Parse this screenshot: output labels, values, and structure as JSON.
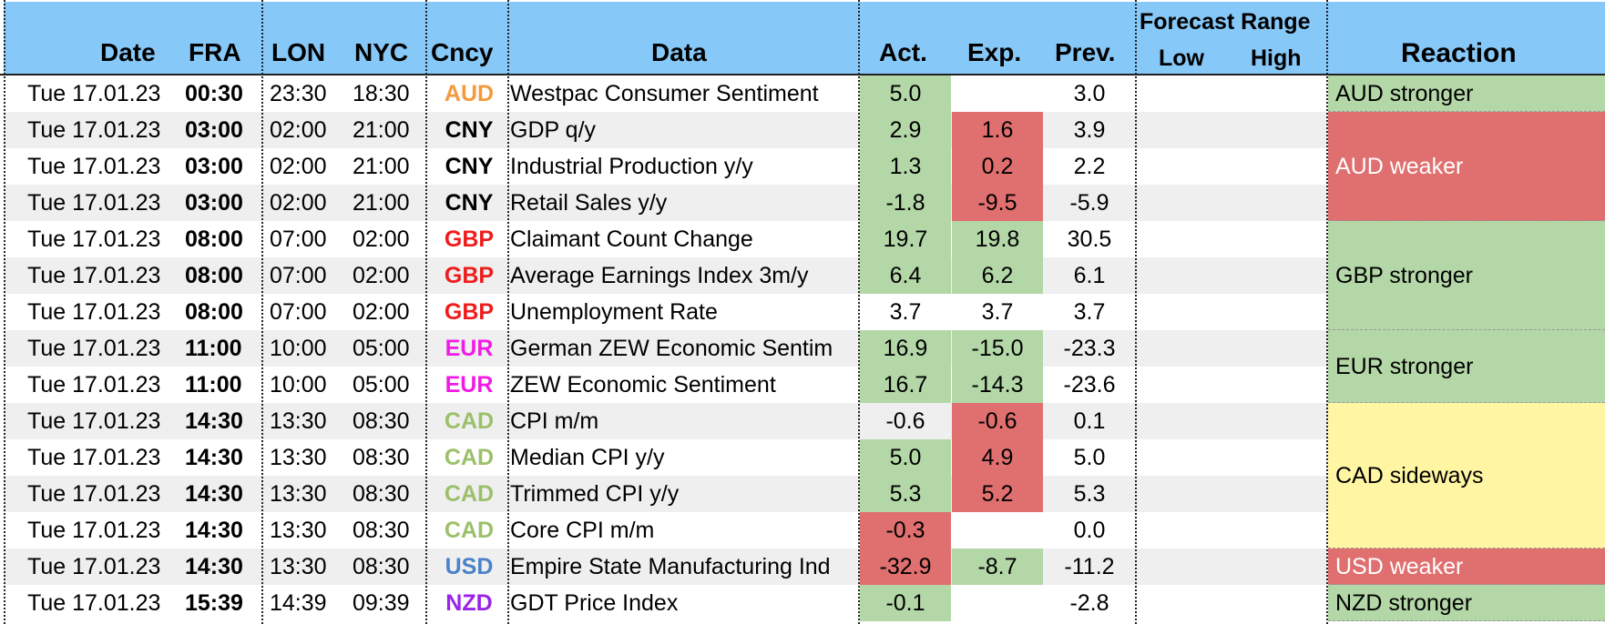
{
  "header": {
    "date": "Date",
    "fra": "FRA",
    "lon": "LON",
    "nyc": "NYC",
    "cncy": "Cncy",
    "data": "Data",
    "act": "Act.",
    "exp": "Exp.",
    "prev": "Prev.",
    "forecast_range": "Forecast Range",
    "low": "Low",
    "high": "High",
    "reaction": "Reaction"
  },
  "colors": {
    "AUD": "#f59a3c",
    "CNY": "#000000",
    "GBP": "#ef1c1c",
    "EUR": "#f01ce6",
    "CAD": "#9cc06a",
    "USD": "#4c82c8",
    "NZD": "#9b22e8",
    "positive": "#b4d7a7",
    "negative": "#e06f6f",
    "neutral": "#fff5a3",
    "header": "#86c8f8"
  },
  "rows": [
    {
      "date": "Tue 17.01.23",
      "fra": "00:30",
      "lon": "23:30",
      "nyc": "18:30",
      "cncy": "AUD",
      "data": "Westpac Consumer Sentiment",
      "act": "5.0",
      "exp": "",
      "prev": "3.0"
    },
    {
      "date": "Tue 17.01.23",
      "fra": "03:00",
      "lon": "02:00",
      "nyc": "21:00",
      "cncy": "CNY",
      "data": "GDP q/y",
      "act": "2.9",
      "exp": "1.6",
      "prev": "3.9"
    },
    {
      "date": "Tue 17.01.23",
      "fra": "03:00",
      "lon": "02:00",
      "nyc": "21:00",
      "cncy": "CNY",
      "data": "Industrial Production y/y",
      "act": "1.3",
      "exp": "0.2",
      "prev": "2.2"
    },
    {
      "date": "Tue 17.01.23",
      "fra": "03:00",
      "lon": "02:00",
      "nyc": "21:00",
      "cncy": "CNY",
      "data": "Retail Sales y/y",
      "act": "-1.8",
      "exp": "-9.5",
      "prev": "-5.9"
    },
    {
      "date": "Tue 17.01.23",
      "fra": "08:00",
      "lon": "07:00",
      "nyc": "02:00",
      "cncy": "GBP",
      "data": "Claimant Count Change",
      "act": "19.7",
      "exp": "19.8",
      "prev": "30.5"
    },
    {
      "date": "Tue 17.01.23",
      "fra": "08:00",
      "lon": "07:00",
      "nyc": "02:00",
      "cncy": "GBP",
      "data": "Average Earnings Index 3m/y",
      "act": "6.4",
      "exp": "6.2",
      "prev": "6.1"
    },
    {
      "date": "Tue 17.01.23",
      "fra": "08:00",
      "lon": "07:00",
      "nyc": "02:00",
      "cncy": "GBP",
      "data": "Unemployment Rate",
      "act": "3.7",
      "exp": "3.7",
      "prev": "3.7"
    },
    {
      "date": "Tue 17.01.23",
      "fra": "11:00",
      "lon": "10:00",
      "nyc": "05:00",
      "cncy": "EUR",
      "data": "German ZEW Economic Sentim",
      "act": "16.9",
      "exp": "-15.0",
      "prev": "-23.3"
    },
    {
      "date": "Tue 17.01.23",
      "fra": "11:00",
      "lon": "10:00",
      "nyc": "05:00",
      "cncy": "EUR",
      "data": "ZEW Economic Sentiment",
      "act": "16.7",
      "exp": "-14.3",
      "prev": "-23.6"
    },
    {
      "date": "Tue 17.01.23",
      "fra": "14:30",
      "lon": "13:30",
      "nyc": "08:30",
      "cncy": "CAD",
      "data": "CPI m/m",
      "act": "-0.6",
      "exp": "-0.6",
      "prev": "0.1"
    },
    {
      "date": "Tue 17.01.23",
      "fra": "14:30",
      "lon": "13:30",
      "nyc": "08:30",
      "cncy": "CAD",
      "data": "Median CPI y/y",
      "act": "5.0",
      "exp": "4.9",
      "prev": "5.0"
    },
    {
      "date": "Tue 17.01.23",
      "fra": "14:30",
      "lon": "13:30",
      "nyc": "08:30",
      "cncy": "CAD",
      "data": "Trimmed CPI y/y",
      "act": "5.3",
      "exp": "5.2",
      "prev": "5.3"
    },
    {
      "date": "Tue 17.01.23",
      "fra": "14:30",
      "lon": "13:30",
      "nyc": "08:30",
      "cncy": "CAD",
      "data": "Core CPI m/m",
      "act": "-0.3",
      "exp": "",
      "prev": "0.0"
    },
    {
      "date": "Tue 17.01.23",
      "fra": "14:30",
      "lon": "13:30",
      "nyc": "08:30",
      "cncy": "USD",
      "data": "Empire State Manufacturing Ind",
      "act": "-32.9",
      "exp": "-8.7",
      "prev": "-11.2"
    },
    {
      "date": "Tue 17.01.23",
      "fra": "15:39",
      "lon": "14:39",
      "nyc": "09:39",
      "cncy": "NZD",
      "data": "GDT Price Index",
      "act": "-0.1",
      "exp": "",
      "prev": "-2.8"
    }
  ],
  "reactions": [
    {
      "label": "AUD stronger",
      "rows": 1,
      "tone": "positive",
      "text_color": "#000000"
    },
    {
      "label": "AUD weaker",
      "rows": 3,
      "tone": "negative",
      "text_color": "#ffffff"
    },
    {
      "label": "GBP stronger",
      "rows": 3,
      "tone": "positive",
      "text_color": "#000000"
    },
    {
      "label": "EUR stronger",
      "rows": 2,
      "tone": "positive",
      "text_color": "#000000"
    },
    {
      "label": "CAD sideways",
      "rows": 4,
      "tone": "neutral",
      "text_color": "#000000"
    },
    {
      "label": "USD weaker",
      "rows": 1,
      "tone": "negative",
      "text_color": "#ffffff"
    },
    {
      "label": "NZD stronger",
      "rows": 1,
      "tone": "positive",
      "text_color": "#000000"
    }
  ],
  "cell_tones": [
    {
      "act": "positive",
      "exp": ""
    },
    {
      "act": "positive",
      "exp": "negative"
    },
    {
      "act": "positive",
      "exp": "negative"
    },
    {
      "act": "positive",
      "exp": "negative"
    },
    {
      "act": "positive",
      "exp": "positive"
    },
    {
      "act": "positive",
      "exp": "positive"
    },
    {
      "act": "",
      "exp": ""
    },
    {
      "act": "positive",
      "exp": "positive"
    },
    {
      "act": "positive",
      "exp": "positive"
    },
    {
      "act": "",
      "exp": "negative"
    },
    {
      "act": "positive",
      "exp": "negative"
    },
    {
      "act": "positive",
      "exp": "negative"
    },
    {
      "act": "negative",
      "exp": ""
    },
    {
      "act": "negative",
      "exp": "positive"
    },
    {
      "act": "positive",
      "exp": ""
    }
  ]
}
